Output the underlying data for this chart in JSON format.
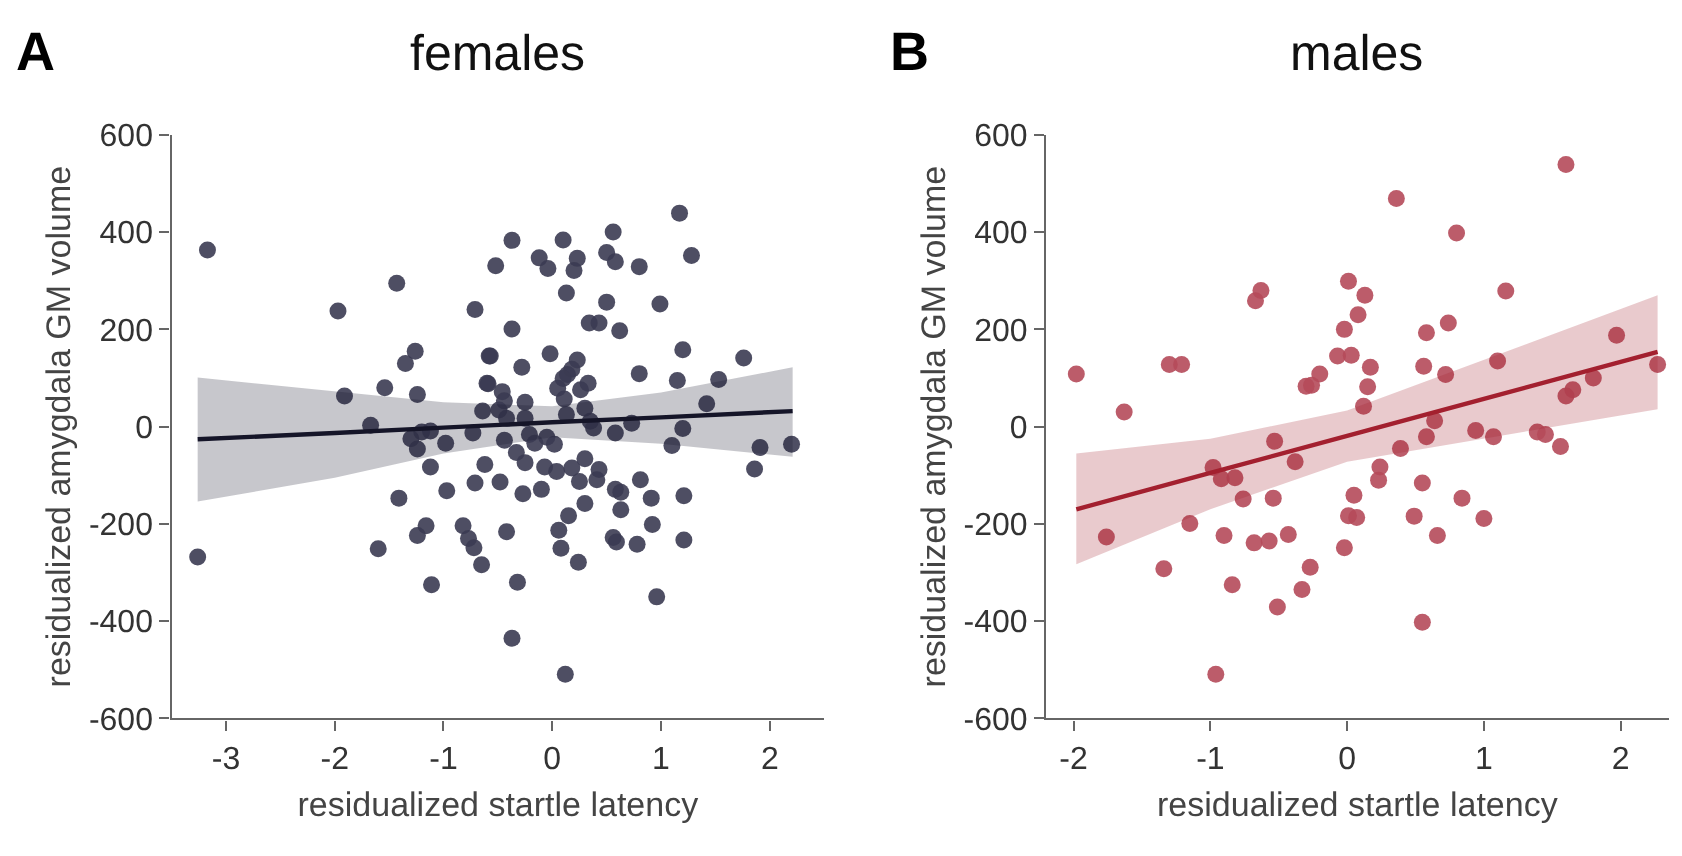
{
  "chart_data": [
    {
      "type": "scatter",
      "title": "females",
      "xlabel": "residualized startle latency",
      "ylabel": "residualized amygdala GM volume",
      "annotations": [
        "A"
      ],
      "marker": "circle",
      "xlim": [
        -3.5,
        2.5
      ],
      "xticks": [
        -3,
        -2,
        -1,
        0,
        1,
        2
      ],
      "ylim": [
        -600,
        600
      ],
      "yticks": [
        -600,
        -400,
        -200,
        0,
        200,
        400,
        600
      ],
      "series": [
        {
          "color": "#3b3b52",
          "x": [
            -3.17,
            -3.26,
            -1.43,
            -1.97,
            -0.52,
            -0.71,
            -1.26,
            -1.35,
            -0.58,
            -1.91,
            -1.54,
            -1.24,
            -0.6,
            -0.64,
            -1.67,
            -0.73,
            -1.2,
            -1.12,
            -1.3,
            -1.24,
            -0.98,
            -1.12,
            -0.62,
            -0.71,
            -0.97,
            -1.41,
            -1.16,
            -1.24,
            -1.6,
            -0.82,
            -0.77,
            -0.72,
            -0.65,
            -1.11,
            1.17,
            1.28,
            0.56,
            0.5,
            0.58,
            0.8,
            0.1,
            0.23,
            -0.12,
            -0.04,
            0.2,
            -0.37,
            0.13,
            0.5,
            0.99,
            0.34,
            0.43,
            0.62,
            -0.37,
            1.2,
            1.76,
            -0.57,
            -0.02,
            0.23,
            -0.28,
            0.18,
            0.14,
            0.8,
            1.15,
            1.53,
            -0.59,
            0.1,
            0.05,
            0.26,
            0.33,
            -0.46,
            0.11,
            1.42,
            -0.25,
            -0.44,
            0.3,
            0.13,
            -0.49,
            -0.42,
            -0.25,
            0.35,
            0.38,
            0.73,
            0.58,
            1.2,
            -0.21,
            -0.05,
            -0.16,
            0.02,
            -0.44,
            1.1,
            1.91,
            2.2,
            1.86,
            -0.33,
            -0.25,
            -0.07,
            0.04,
            0.18,
            0.3,
            0.43,
            0.25,
            0.41,
            -0.48,
            -0.1,
            -0.27,
            0.58,
            0.63,
            0.81,
            0.91,
            1.21,
            0.3,
            0.15,
            0.63,
            0.06,
            0.92,
            1.21,
            0.56,
            0.59,
            0.78,
            -0.42,
            0.08,
            0.24,
            -0.32,
            0.96,
            -0.37,
            0.12
          ],
          "values": [
            363,
            -268,
            295,
            238,
            331,
            241,
            155,
            130,
            145,
            63,
            80,
            66,
            89,
            32,
            3,
            -13,
            -11,
            -9,
            -25,
            -46,
            -34,
            -83,
            -78,
            -116,
            -132,
            -147,
            -204,
            -224,
            -251,
            -204,
            -230,
            -249,
            -284,
            -325,
            439,
            352,
            400,
            358,
            339,
            329,
            384,
            346,
            347,
            325,
            321,
            383,
            275,
            256,
            252,
            213,
            213,
            197,
            201,
            158,
            141,
            145,
            150,
            137,
            122,
            118,
            107,
            109,
            95,
            97,
            88,
            99,
            79,
            76,
            89,
            72,
            57,
            47,
            50,
            53,
            38,
            25,
            34,
            17,
            17,
            11,
            -3,
            7,
            -13,
            -4,
            -16,
            -22,
            -34,
            -36,
            -28,
            -39,
            -43,
            -36,
            -87,
            -53,
            -74,
            -83,
            -92,
            -85,
            -66,
            -88,
            -113,
            -109,
            -114,
            -129,
            -138,
            -129,
            -135,
            -109,
            -147,
            -142,
            -158,
            -183,
            -171,
            -213,
            -201,
            -233,
            -228,
            -237,
            -242,
            -216,
            -250,
            -279,
            -320,
            -350,
            -435,
            -509
          ]
        },
        {
          "type": "line",
          "marker": "none",
          "color": "#151528",
          "x": [
            -3.26,
            -2,
            -1,
            0,
            1,
            2.21
          ],
          "values": [
            -26,
            -13,
            -2,
            9,
            19,
            32
          ],
          "lower": [
            -154,
            -105,
            -55,
            -22,
            -35,
            -62
          ],
          "upper": [
            101,
            72,
            50,
            42,
            70,
            122
          ]
        }
      ]
    },
    {
      "type": "scatter",
      "title": "males",
      "xlabel": "residualized startle latency",
      "ylabel": "residualized amygdala GM volume",
      "annotations": [
        "B"
      ],
      "marker": "circle",
      "xlim": [
        -2.2,
        2.35
      ],
      "xticks": [
        -2,
        -1,
        0,
        1,
        2
      ],
      "ylim": [
        -600,
        600
      ],
      "yticks": [
        -600,
        -400,
        -200,
        0,
        200,
        400,
        600
      ],
      "series": [
        {
          "color": "#b54a5a",
          "x": [
            -1.98,
            -1.63,
            -1.3,
            -1.21,
            -0.67,
            -0.63,
            0.01,
            -0.02,
            -0.07,
            0.03,
            -0.2,
            -0.3,
            -0.26,
            -0.53,
            -0.38,
            -0.98,
            -0.92,
            -0.82,
            -0.76,
            -0.54,
            -1.15,
            -1.76,
            -0.9,
            -0.68,
            -0.57,
            -0.43,
            -0.02,
            -1.34,
            -0.84,
            -0.27,
            -0.33,
            -0.51,
            -0.96,
            0.05,
            1.6,
            0.36,
            0.8,
            1.16,
            0.13,
            0.08,
            0.58,
            0.74,
            1.97,
            0.17,
            0.56,
            0.72,
            1.1,
            2.27,
            0.15,
            0.12,
            1.8,
            1.65,
            1.6,
            0.64,
            0.58,
            0.94,
            1.07,
            1.39,
            1.45,
            1.56,
            0.39,
            0.24,
            0.23,
            0.55,
            0.01,
            0.07,
            0.49,
            0.84,
            1.0,
            0.66,
            0.55
          ],
          "values": [
            108,
            30,
            128,
            128,
            259,
            280,
            299,
            200,
            145,
            147,
            108,
            83,
            85,
            -30,
            -72,
            -84,
            -107,
            -105,
            -149,
            -147,
            -199,
            -227,
            -224,
            -239,
            -235,
            -222,
            -249,
            -292,
            -325,
            -289,
            -335,
            -371,
            -509,
            -141,
            539,
            469,
            398,
            279,
            270,
            230,
            193,
            213,
            188,
            122,
            124,
            107,
            135,
            128,
            82,
            42,
            100,
            76,
            63,
            12,
            -21,
            -8,
            -21,
            -11,
            -16,
            -41,
            -45,
            -83,
            -110,
            -116,
            -183,
            -187,
            -184,
            -147,
            -189,
            -224,
            -402
          ]
        },
        {
          "type": "line",
          "marker": "none",
          "color": "#a3202f",
          "x": [
            -1.98,
            -1,
            0,
            1,
            2.27
          ],
          "values": [
            -170,
            -95,
            -19,
            57,
            154
          ],
          "lower": [
            -283,
            -170,
            -72,
            -23,
            36
          ],
          "upper": [
            -55,
            -25,
            33,
            137,
            270
          ]
        }
      ]
    }
  ]
}
